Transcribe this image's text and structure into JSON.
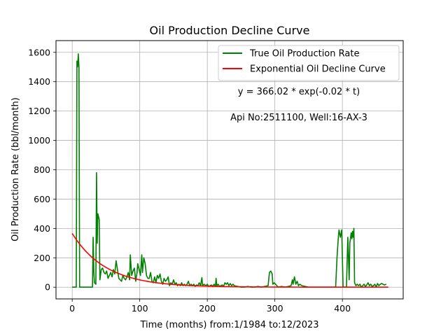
{
  "chart_data": {
    "type": "line",
    "title": "Oil Production Decline Curve",
    "xlabel": "Time (months) from:1/1984 to:12/2023",
    "ylabel": "Oil Production Rate (bbl/month)",
    "xlim": [
      -24,
      490
    ],
    "ylim": [
      -80,
      1680
    ],
    "xticks": [
      0,
      100,
      200,
      300,
      400
    ],
    "yticks": [
      0,
      200,
      400,
      600,
      800,
      1000,
      1200,
      1400,
      1600
    ],
    "grid": true,
    "legend_position": "top-right",
    "annotations": [
      "y = 366.02 * exp(-0.02 * t)",
      "Api No:2511100, Well:16-AX-3"
    ],
    "series": [
      {
        "name": "True Oil Production Rate",
        "color": "#008000",
        "points": [
          [
            0,
            0
          ],
          [
            6,
            0
          ],
          [
            7,
            1540
          ],
          [
            8,
            1500
          ],
          [
            9,
            1590
          ],
          [
            10,
            1500
          ],
          [
            11,
            0
          ],
          [
            30,
            0
          ],
          [
            31,
            340
          ],
          [
            32,
            100
          ],
          [
            33,
            30
          ],
          [
            35,
            20
          ],
          [
            36,
            780
          ],
          [
            37,
            300
          ],
          [
            38,
            500
          ],
          [
            40,
            460
          ],
          [
            41,
            50
          ],
          [
            43,
            120
          ],
          [
            45,
            130
          ],
          [
            47,
            100
          ],
          [
            49,
            90
          ],
          [
            51,
            110
          ],
          [
            53,
            60
          ],
          [
            55,
            80
          ],
          [
            57,
            100
          ],
          [
            59,
            70
          ],
          [
            61,
            120
          ],
          [
            63,
            90
          ],
          [
            65,
            180
          ],
          [
            67,
            120
          ],
          [
            69,
            60
          ],
          [
            71,
            50
          ],
          [
            73,
            40
          ],
          [
            75,
            80
          ],
          [
            77,
            60
          ],
          [
            79,
            50
          ],
          [
            81,
            70
          ],
          [
            83,
            100
          ],
          [
            85,
            50
          ],
          [
            86,
            220
          ],
          [
            88,
            80
          ],
          [
            90,
            110
          ],
          [
            92,
            130
          ],
          [
            94,
            40
          ],
          [
            96,
            100
          ],
          [
            97,
            160
          ],
          [
            99,
            120
          ],
          [
            101,
            80
          ],
          [
            103,
            220
          ],
          [
            104,
            100
          ],
          [
            106,
            200
          ],
          [
            108,
            160
          ],
          [
            110,
            80
          ],
          [
            112,
            60
          ],
          [
            114,
            60
          ],
          [
            116,
            100
          ],
          [
            118,
            40
          ],
          [
            120,
            30
          ],
          [
            122,
            70
          ],
          [
            124,
            30
          ],
          [
            126,
            80
          ],
          [
            128,
            60
          ],
          [
            130,
            90
          ],
          [
            132,
            40
          ],
          [
            134,
            20
          ],
          [
            136,
            60
          ],
          [
            138,
            40
          ],
          [
            140,
            50
          ],
          [
            142,
            70
          ],
          [
            144,
            10
          ],
          [
            146,
            30
          ],
          [
            148,
            20
          ],
          [
            150,
            50
          ],
          [
            152,
            20
          ],
          [
            154,
            30
          ],
          [
            156,
            10
          ],
          [
            158,
            20
          ],
          [
            160,
            10
          ],
          [
            162,
            30
          ],
          [
            164,
            10
          ],
          [
            166,
            20
          ],
          [
            168,
            10
          ],
          [
            170,
            20
          ],
          [
            172,
            40
          ],
          [
            174,
            10
          ],
          [
            176,
            20
          ],
          [
            178,
            10
          ],
          [
            180,
            20
          ],
          [
            182,
            5
          ],
          [
            184,
            15
          ],
          [
            186,
            10
          ],
          [
            188,
            30
          ],
          [
            190,
            10
          ],
          [
            192,
            65
          ],
          [
            193,
            10
          ],
          [
            195,
            20
          ],
          [
            198,
            10
          ],
          [
            200,
            20
          ],
          [
            202,
            5
          ],
          [
            204,
            10
          ],
          [
            206,
            15
          ],
          [
            208,
            5
          ],
          [
            210,
            20
          ],
          [
            212,
            5
          ],
          [
            213,
            60
          ],
          [
            214,
            10
          ],
          [
            216,
            20
          ],
          [
            218,
            5
          ],
          [
            220,
            10
          ],
          [
            222,
            15
          ],
          [
            224,
            5
          ],
          [
            226,
            30
          ],
          [
            228,
            20
          ],
          [
            230,
            30
          ],
          [
            232,
            10
          ],
          [
            234,
            25
          ],
          [
            236,
            10
          ],
          [
            238,
            20
          ],
          [
            240,
            10
          ],
          [
            245,
            5
          ],
          [
            250,
            0
          ],
          [
            255,
            0
          ],
          [
            260,
            5
          ],
          [
            265,
            0
          ],
          [
            270,
            0
          ],
          [
            275,
            5
          ],
          [
            280,
            0
          ],
          [
            285,
            5
          ],
          [
            290,
            10
          ],
          [
            292,
            100
          ],
          [
            294,
            110
          ],
          [
            296,
            90
          ],
          [
            297,
            20
          ],
          [
            299,
            30
          ],
          [
            301,
            20
          ],
          [
            303,
            10
          ],
          [
            305,
            0
          ],
          [
            310,
            5
          ],
          [
            315,
            0
          ],
          [
            320,
            5
          ],
          [
            324,
            10
          ],
          [
            326,
            50
          ],
          [
            327,
            20
          ],
          [
            329,
            70
          ],
          [
            331,
            20
          ],
          [
            333,
            40
          ],
          [
            335,
            10
          ],
          [
            337,
            20
          ],
          [
            340,
            10
          ],
          [
            345,
            5
          ],
          [
            350,
            0
          ],
          [
            360,
            0
          ],
          [
            370,
            0
          ],
          [
            380,
            0
          ],
          [
            390,
            0
          ],
          [
            392,
            200
          ],
          [
            394,
            340
          ],
          [
            395,
            390
          ],
          [
            397,
            340
          ],
          [
            399,
            390
          ],
          [
            401,
            0
          ],
          [
            406,
            0
          ],
          [
            408,
            340
          ],
          [
            409,
            200
          ],
          [
            410,
            50
          ],
          [
            411,
            300
          ],
          [
            413,
            370
          ],
          [
            414,
            330
          ],
          [
            415,
            380
          ],
          [
            416,
            340
          ],
          [
            417,
            400
          ],
          [
            418,
            30
          ],
          [
            420,
            10
          ],
          [
            422,
            20
          ],
          [
            424,
            10
          ],
          [
            426,
            20
          ],
          [
            428,
            0
          ],
          [
            430,
            10
          ],
          [
            432,
            20
          ],
          [
            434,
            5
          ],
          [
            436,
            15
          ],
          [
            438,
            30
          ],
          [
            440,
            10
          ],
          [
            442,
            20
          ],
          [
            444,
            5
          ],
          [
            446,
            10
          ],
          [
            448,
            20
          ],
          [
            450,
            0
          ],
          [
            452,
            25
          ],
          [
            454,
            10
          ],
          [
            456,
            20
          ],
          [
            458,
            25
          ],
          [
            460,
            20
          ],
          [
            462,
            15
          ],
          [
            465,
            20
          ]
        ]
      },
      {
        "name": "Exponential Oil Decline Curve",
        "color": "#ff0000",
        "model": {
          "a": 366.02,
          "b": 0.02
        },
        "x_range": [
          0,
          468
        ]
      }
    ]
  }
}
